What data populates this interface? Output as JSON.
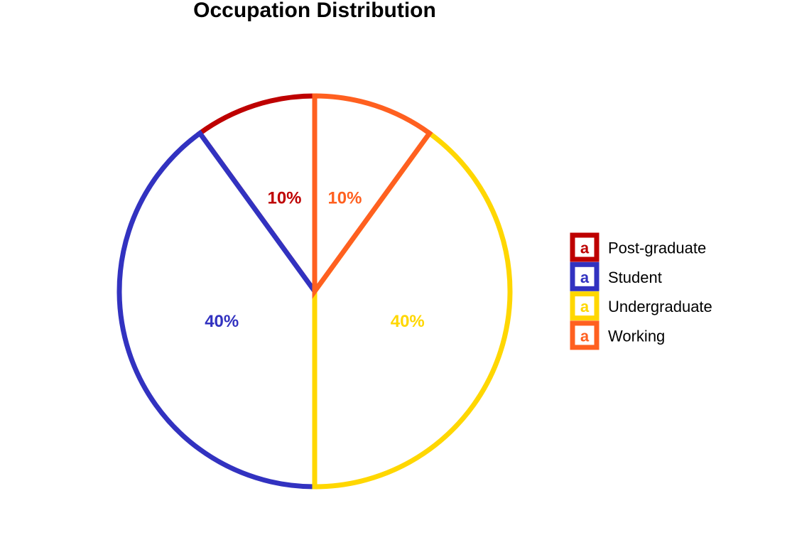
{
  "chart_data": {
    "type": "pie",
    "title": "Occupation Distribution",
    "categories": [
      "Post-graduate",
      "Student",
      "Undergraduate",
      "Working"
    ],
    "values": [
      10,
      40,
      40,
      10
    ],
    "labels": [
      "10%",
      "40%",
      "40%",
      "10%"
    ],
    "colors": [
      "#BE0000",
      "#3232C0",
      "#FFD700",
      "#FF6020"
    ],
    "legend": {
      "placement": "right",
      "key_glyph": "a",
      "entries": [
        "Post-graduate",
        "Student",
        "Undergraduate",
        "Working"
      ]
    }
  }
}
